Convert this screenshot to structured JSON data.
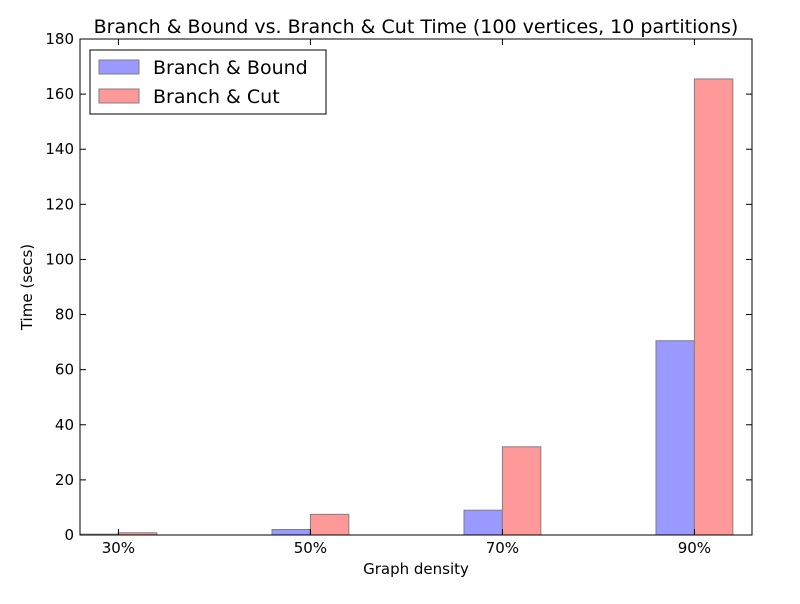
{
  "chart_data": {
    "type": "bar",
    "title": "Branch & Bound vs. Branch & Cut Time (100 vertices, 10 partitions)",
    "xlabel": "Graph density",
    "ylabel": "Time (secs)",
    "categories": [
      "30%",
      "50%",
      "70%",
      "90%"
    ],
    "series": [
      {
        "name": "Branch & Bound",
        "values": [
          0.3,
          2.0,
          9.0,
          70.5
        ],
        "color": "#9999ff"
      },
      {
        "name": "Branch & Cut",
        "values": [
          0.8,
          7.5,
          32.0,
          165.5
        ],
        "color": "#ff9999"
      }
    ],
    "ylim": [
      0,
      180
    ],
    "yticks": [
      0,
      20,
      40,
      60,
      80,
      100,
      120,
      140,
      160,
      180
    ],
    "grid": false,
    "legend_position": "top-left"
  }
}
